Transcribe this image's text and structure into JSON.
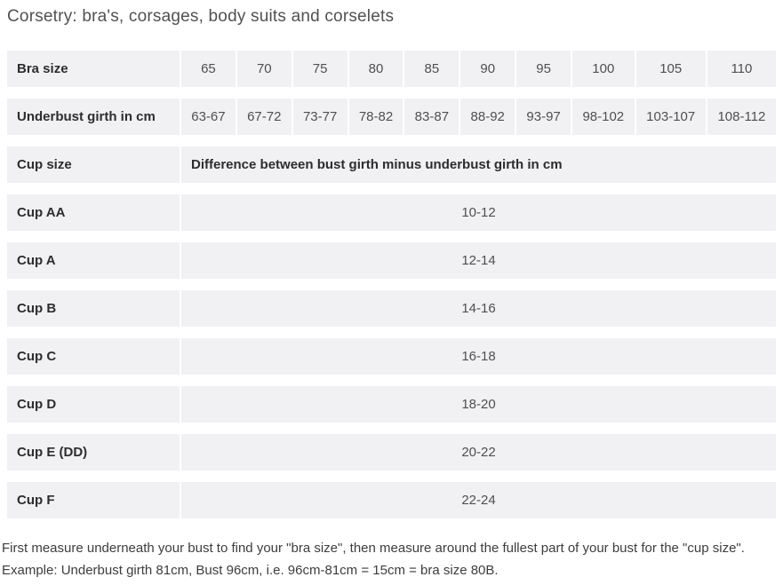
{
  "title": "Corsetry: bra's, corsages, body suits and corselets",
  "table": {
    "bra_size": {
      "label": "Bra size",
      "values": [
        "65",
        "70",
        "75",
        "80",
        "85",
        "90",
        "95",
        "100",
        "105",
        "110"
      ]
    },
    "underbust": {
      "label": "Underbust girth in cm",
      "values": [
        "63-67",
        "67-72",
        "73-77",
        "78-82",
        "83-87",
        "88-92",
        "93-97",
        "98-102",
        "103-107",
        "108-112"
      ]
    },
    "cup_header": {
      "label": "Cup size",
      "description": "Difference between bust girth minus underbust girth in cm"
    },
    "cups": [
      {
        "label": "Cup AA",
        "value": "10-12"
      },
      {
        "label": "Cup A",
        "value": "12-14"
      },
      {
        "label": "Cup B",
        "value": "14-16"
      },
      {
        "label": "Cup C",
        "value": "16-18"
      },
      {
        "label": "Cup D",
        "value": "18-20"
      },
      {
        "label": "Cup E (DD)",
        "value": "20-22"
      },
      {
        "label": "Cup F",
        "value": "22-24"
      }
    ]
  },
  "footer_note": "First measure underneath your bust to find your \"bra size\", then measure around the fullest part of your bust for the \"cup size\". Example: Underbust girth 81cm, Bust 96cm, i.e. 96cm-81cm = 15cm = bra size 80B.",
  "colors": {
    "cell_bg": "#f1f1f3",
    "label_text": "#2d2d2f",
    "value_text": "#4f4f52",
    "title_text": "#515151"
  }
}
